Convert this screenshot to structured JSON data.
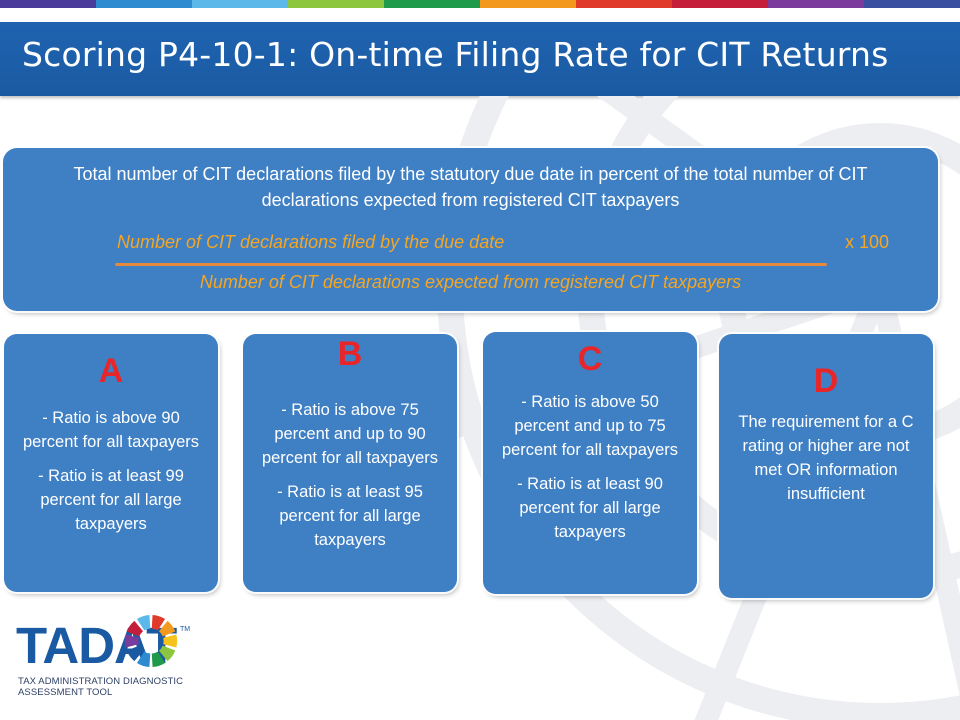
{
  "colors": {
    "stripe": [
      "#4a3a9a",
      "#2e8bd0",
      "#5cb8e8",
      "#8cc63f",
      "#1e9a4a",
      "#f39a1e",
      "#e03a2a",
      "#c41e3a",
      "#7a3b9c",
      "#3a4fa0"
    ],
    "title_bar": "#1a5aa2",
    "panel": "#3f7fc4",
    "formula_text": "#f5a623",
    "grade_letter": "#e8262a"
  },
  "title": "Scoring P4-10-1: On-time Filing Rate for CIT Returns",
  "formula": {
    "definition": "Total  number of CIT declarations filed by the statutory due date in percent of the total number of CIT declarations expected from registered CIT taxpayers",
    "numerator": "Number of CIT declarations filed by the due date",
    "multiplier": "x 100",
    "denominator": "Number of CIT declarations expected from registered CIT taxpayers"
  },
  "ratings": [
    {
      "grade": "A",
      "criteria": [
        "- Ratio is above 90 percent for all taxpayers",
        "- Ratio is at least 99 percent for all large taxpayers"
      ]
    },
    {
      "grade": "B",
      "criteria": [
        "- Ratio is above 75 percent and up to 90 percent for all taxpayers",
        "- Ratio is at least 95 percent for all large taxpayers"
      ]
    },
    {
      "grade": "C",
      "criteria": [
        "- Ratio is above 50 percent and up to 75 percent for all taxpayers",
        "- Ratio is at least 90 percent for all large taxpayers"
      ]
    },
    {
      "grade": "D",
      "criteria": [
        "The requirement for a C rating or higher are not met OR information insufficient"
      ]
    }
  ],
  "logo": {
    "name": "TADAT",
    "trademark": "TM",
    "subtitle_line1": "TAX ADMINISTRATION DIAGNOSTIC",
    "subtitle_line2": "ASSESSMENT TOOL",
    "wheel_colors": [
      "#e03a2a",
      "#f39a1e",
      "#f6c21c",
      "#8cc63f",
      "#1e9a4a",
      "#2e8bd0",
      "#1a5aa2",
      "#7a3b9c",
      "#c41e3a",
      "#5cb8e8"
    ]
  }
}
